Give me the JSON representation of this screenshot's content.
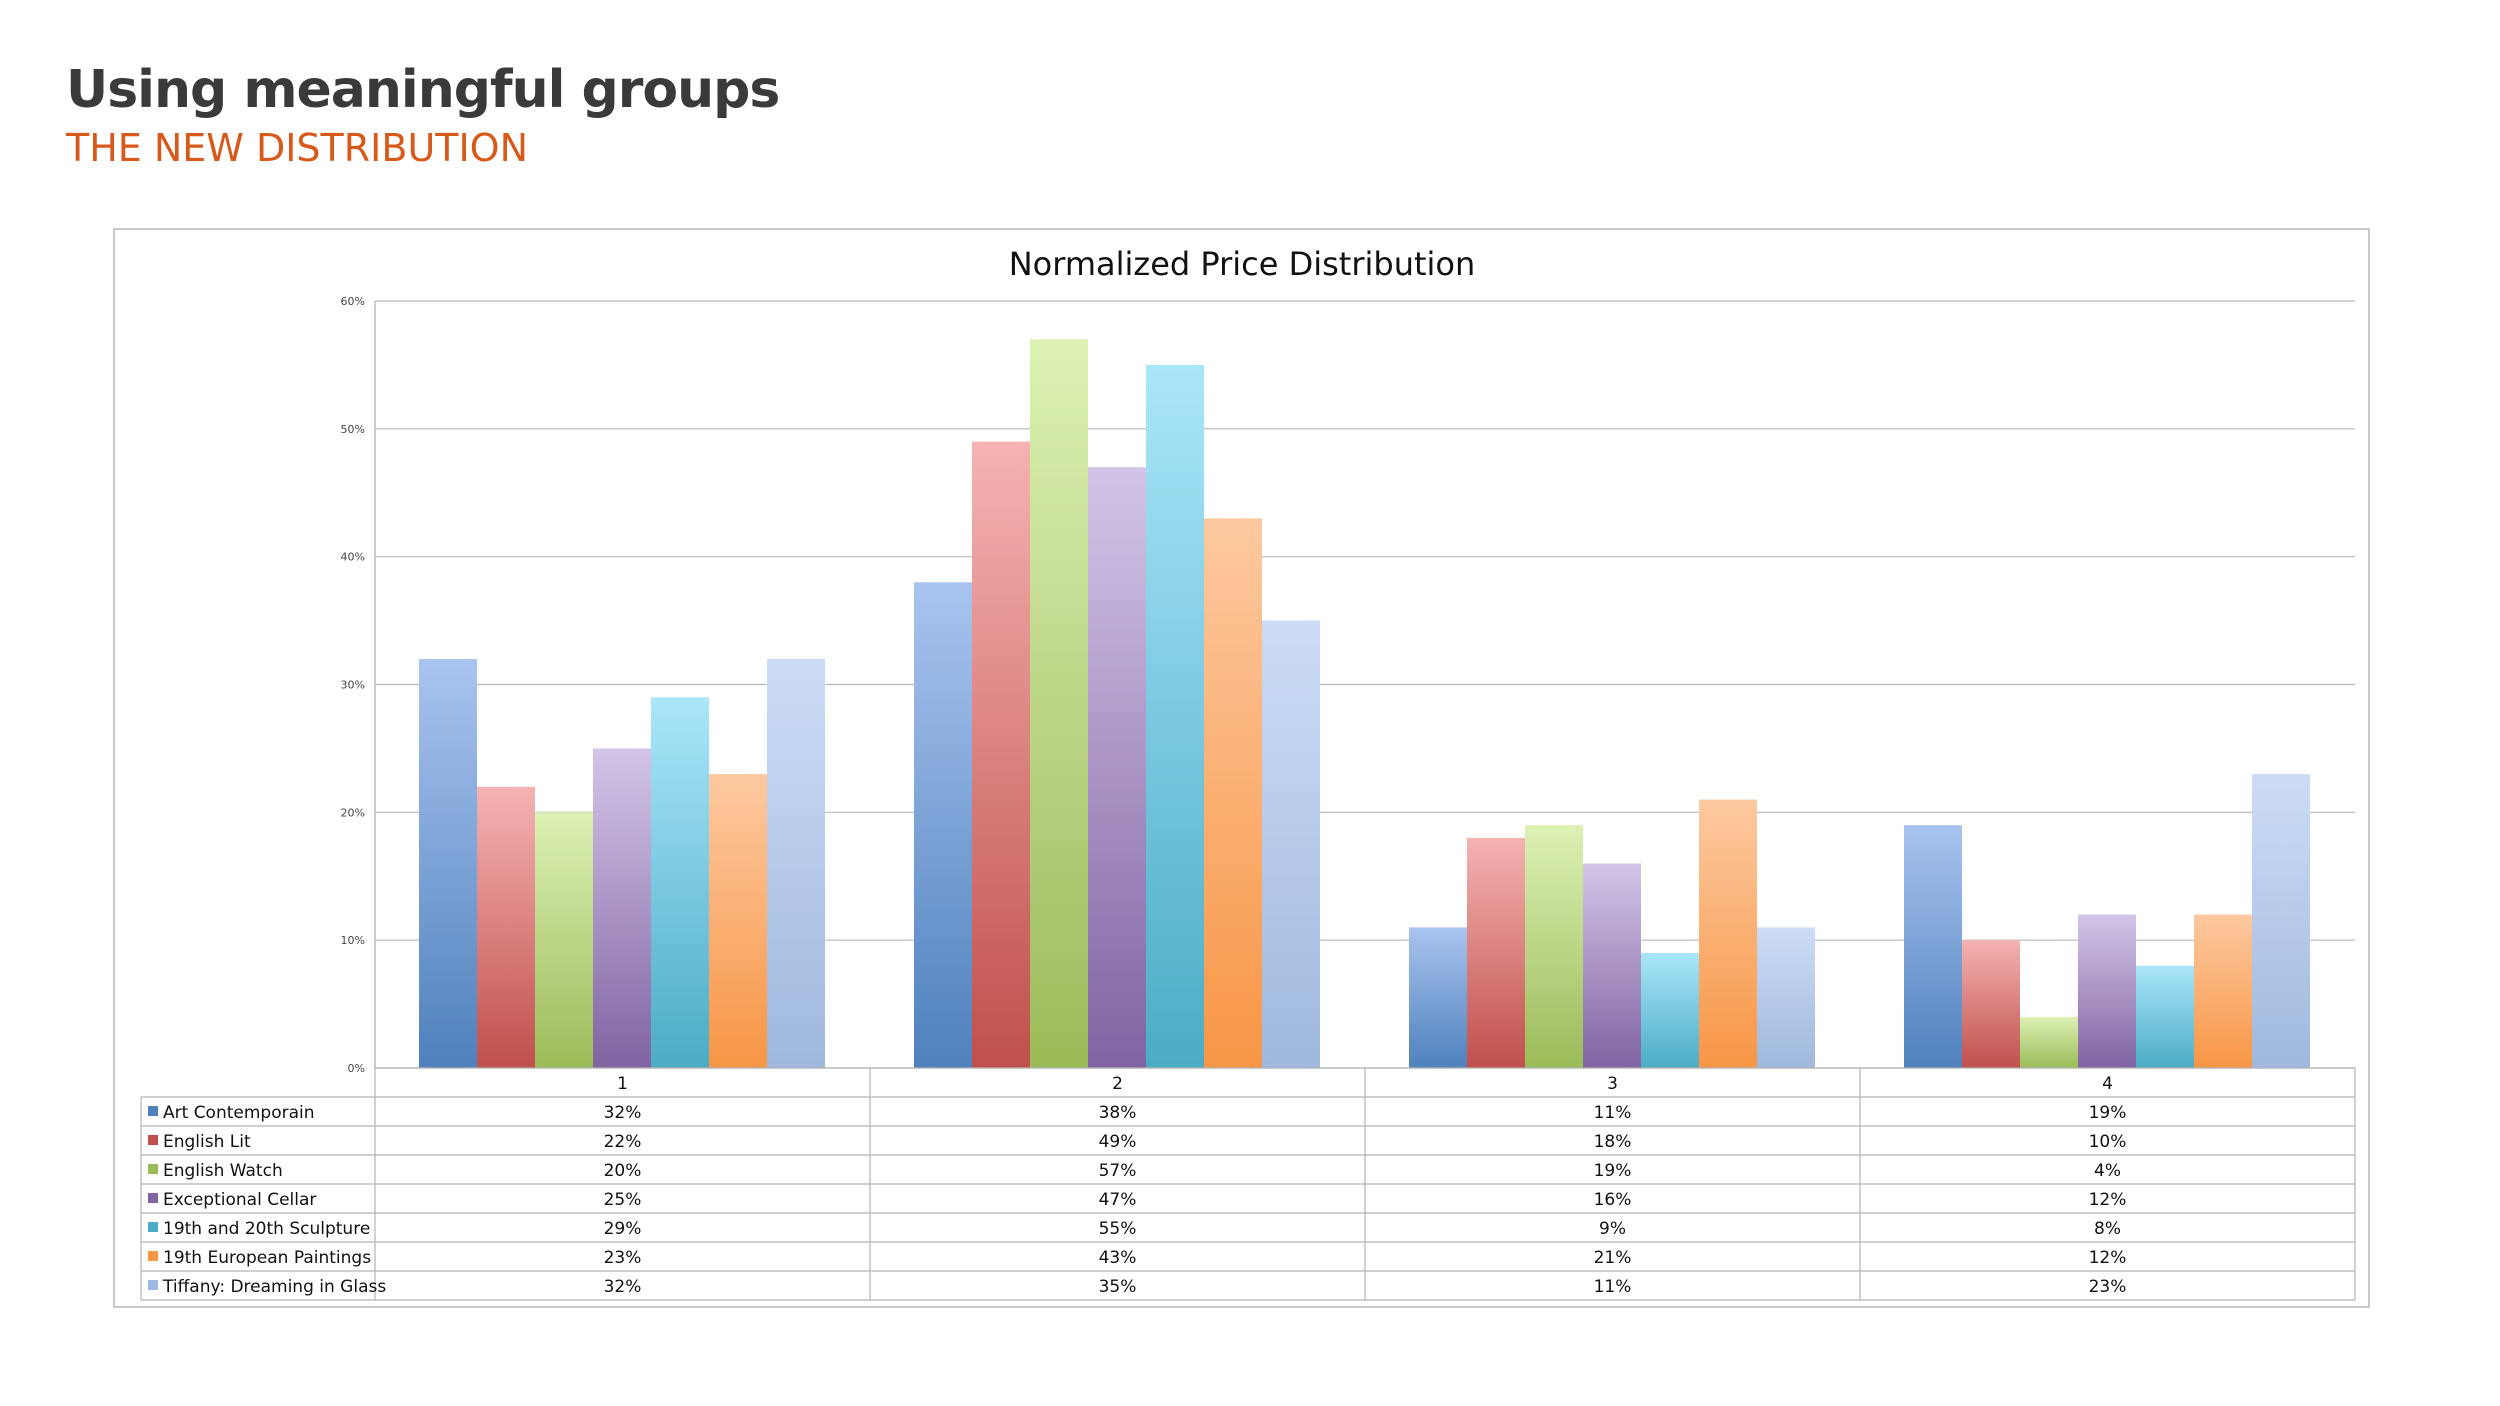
{
  "slide": {
    "title": "Using meaningful groups",
    "subtitle": "THE NEW DISTRIBUTION"
  },
  "chart_data": {
    "type": "bar",
    "title": "Normalized Price Distribution",
    "xlabel": "",
    "ylabel": "",
    "ylim": [
      0,
      60
    ],
    "yticks": [
      "0%",
      "10%",
      "20%",
      "30%",
      "40%",
      "50%",
      "60%"
    ],
    "grid": true,
    "legend": "data-table",
    "categories": [
      "1",
      "2",
      "3",
      "4"
    ],
    "series": [
      {
        "name": "Art Contemporain",
        "color": "#4f81bd",
        "light": "#a9c4ef",
        "values": [
          32,
          38,
          11,
          19
        ],
        "labels": [
          "32%",
          "38%",
          "11%",
          "19%"
        ]
      },
      {
        "name": "English Lit",
        "color": "#c0504d",
        "light": "#f5b3b1",
        "values": [
          22,
          49,
          18,
          10
        ],
        "labels": [
          "22%",
          "49%",
          "18%",
          "10%"
        ]
      },
      {
        "name": "English Watch",
        "color": "#9bbb59",
        "light": "#ddf1b4",
        "values": [
          20,
          57,
          19,
          4
        ],
        "labels": [
          "20%",
          "57%",
          "19%",
          "4%"
        ]
      },
      {
        "name": "Exceptional Cellar",
        "color": "#8064a2",
        "light": "#d3c5e8",
        "values": [
          25,
          47,
          16,
          12
        ],
        "labels": [
          "25%",
          "47%",
          "16%",
          "12%"
        ]
      },
      {
        "name": "19th and 20th Sculpture",
        "color": "#4bacc6",
        "light": "#aae6fa",
        "values": [
          29,
          55,
          9,
          8
        ],
        "labels": [
          "29%",
          "55%",
          "9%",
          "8%"
        ]
      },
      {
        "name": "19th European Paintings",
        "color": "#f79646",
        "light": "#fdc9a0",
        "values": [
          23,
          43,
          21,
          12
        ],
        "labels": [
          "23%",
          "43%",
          "21%",
          "12%"
        ]
      },
      {
        "name": "Tiffany: Dreaming in Glass",
        "color": "#9fb8de",
        "light": "#cddcf6",
        "values": [
          32,
          35,
          11,
          23
        ],
        "labels": [
          "32%",
          "35%",
          "11%",
          "23%"
        ]
      }
    ]
  }
}
